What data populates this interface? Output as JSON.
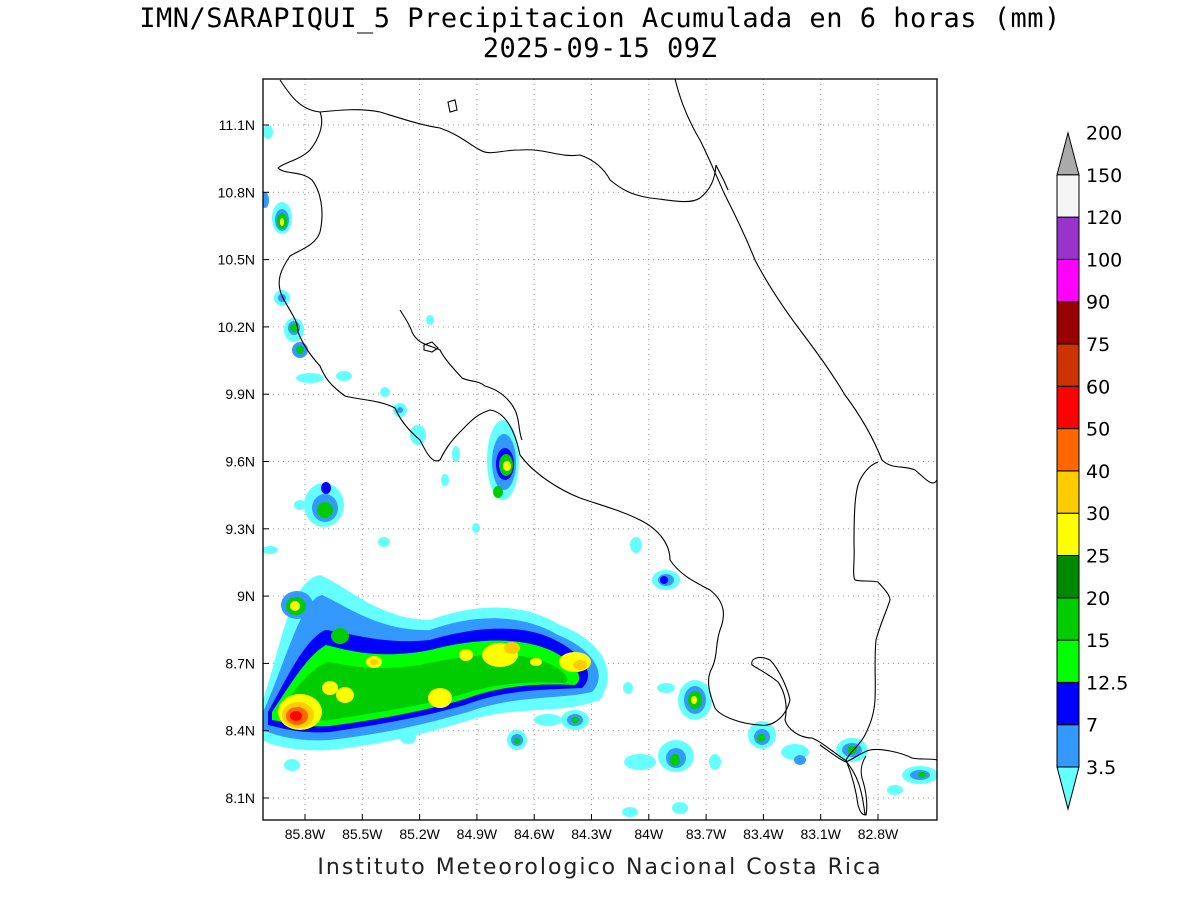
{
  "title": {
    "line1": "IMN/SARAPIQUI_5 Precipitacion Acumulada en 6 horas (mm)",
    "line2": "2025-09-15 09Z"
  },
  "footer": "Instituto Meteorologico Nacional Costa Rica",
  "map": {
    "lat_labels": [
      "11.1N",
      "10.8N",
      "10.5N",
      "10.2N",
      "9.9N",
      "9.6N",
      "9.3N",
      "9N",
      "8.7N",
      "8.4N",
      "8.1N"
    ],
    "lon_labels": [
      "85.8W",
      "85.5W",
      "85.2W",
      "84.9W",
      "84.6W",
      "84.3W",
      "84W",
      "83.7W",
      "83.4W",
      "83.1W",
      "82.8W"
    ],
    "grid": "dotted"
  },
  "colorbar": {
    "labels": [
      "3.5",
      "7",
      "12.5",
      "15",
      "20",
      "25",
      "30",
      "40",
      "50",
      "60",
      "75",
      "90",
      "100",
      "120",
      "150",
      "200"
    ],
    "colors": [
      "#66ffff",
      "#3399ff",
      "#0000ff",
      "#00ff00",
      "#00cc00",
      "#008800",
      "#ffff00",
      "#ffcc00",
      "#ff6600",
      "#ff0000",
      "#cc3300",
      "#990000",
      "#ff00ff",
      "#9933cc",
      "#f5f5f5",
      "#aaaaaa"
    ]
  }
}
